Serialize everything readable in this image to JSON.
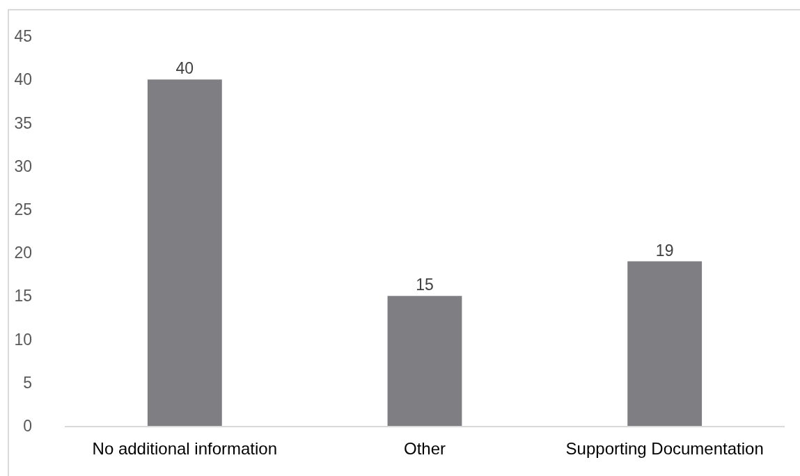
{
  "chart_data": {
    "type": "bar",
    "categories": [
      "No additional information",
      "Other",
      "Supporting Documentation"
    ],
    "values": [
      40,
      15,
      19
    ],
    "color": "#7f7e83",
    "ylim": [
      0,
      45
    ],
    "yticks": [
      0,
      5,
      10,
      15,
      20,
      25,
      30,
      35,
      40,
      45
    ],
    "grid": false,
    "data_labels": true
  }
}
